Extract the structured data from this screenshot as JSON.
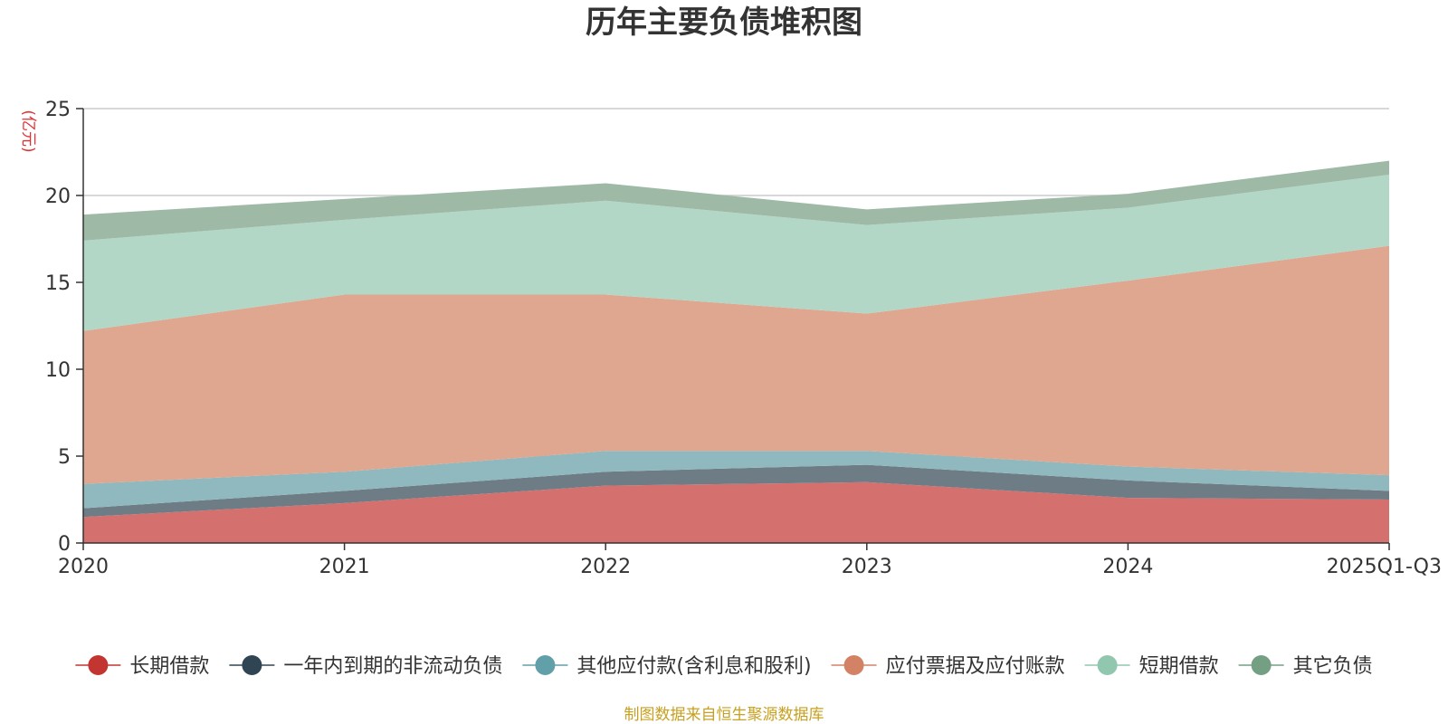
{
  "chart_data": {
    "type": "area",
    "stacked": true,
    "title": "历年主要负债堆积图",
    "unit_label": "(亿元)",
    "source": "制图数据来自恒生聚源数据库",
    "categories": [
      "2020",
      "2021",
      "2022",
      "2023",
      "2024",
      "2025Q1-Q3"
    ],
    "ylim": [
      0,
      25
    ],
    "yticks": [
      0,
      5,
      10,
      15,
      20,
      25
    ],
    "grid": true,
    "legend_position": "bottom",
    "series": [
      {
        "name": "长期借款",
        "color": "#c23531",
        "fill": "#d4706d",
        "values": [
          1.5,
          2.3,
          3.3,
          3.5,
          2.6,
          2.5
        ]
      },
      {
        "name": "一年内到期的非流动负债",
        "color": "#2f4554",
        "fill": "#6e7c86",
        "values": [
          0.5,
          0.7,
          0.8,
          1.0,
          1.0,
          0.5
        ]
      },
      {
        "name": "其他应付款(含利息和股利)",
        "color": "#61a0a8",
        "fill": "#8fb9be",
        "values": [
          1.4,
          1.1,
          1.2,
          0.8,
          0.8,
          0.9
        ]
      },
      {
        "name": "应付票据及应付账款",
        "color": "#d48265",
        "fill": "#dfa690",
        "values": [
          8.8,
          10.2,
          9.0,
          7.9,
          10.7,
          13.2
        ]
      },
      {
        "name": "短期借款",
        "color": "#91c7ae",
        "fill": "#b2d7c6",
        "values": [
          5.2,
          4.3,
          5.4,
          5.1,
          4.2,
          4.1
        ]
      },
      {
        "name": "其它负债",
        "color": "#749f83",
        "fill": "#9eb9a6",
        "values": [
          1.5,
          1.2,
          1.0,
          0.9,
          0.8,
          0.8
        ]
      }
    ]
  }
}
